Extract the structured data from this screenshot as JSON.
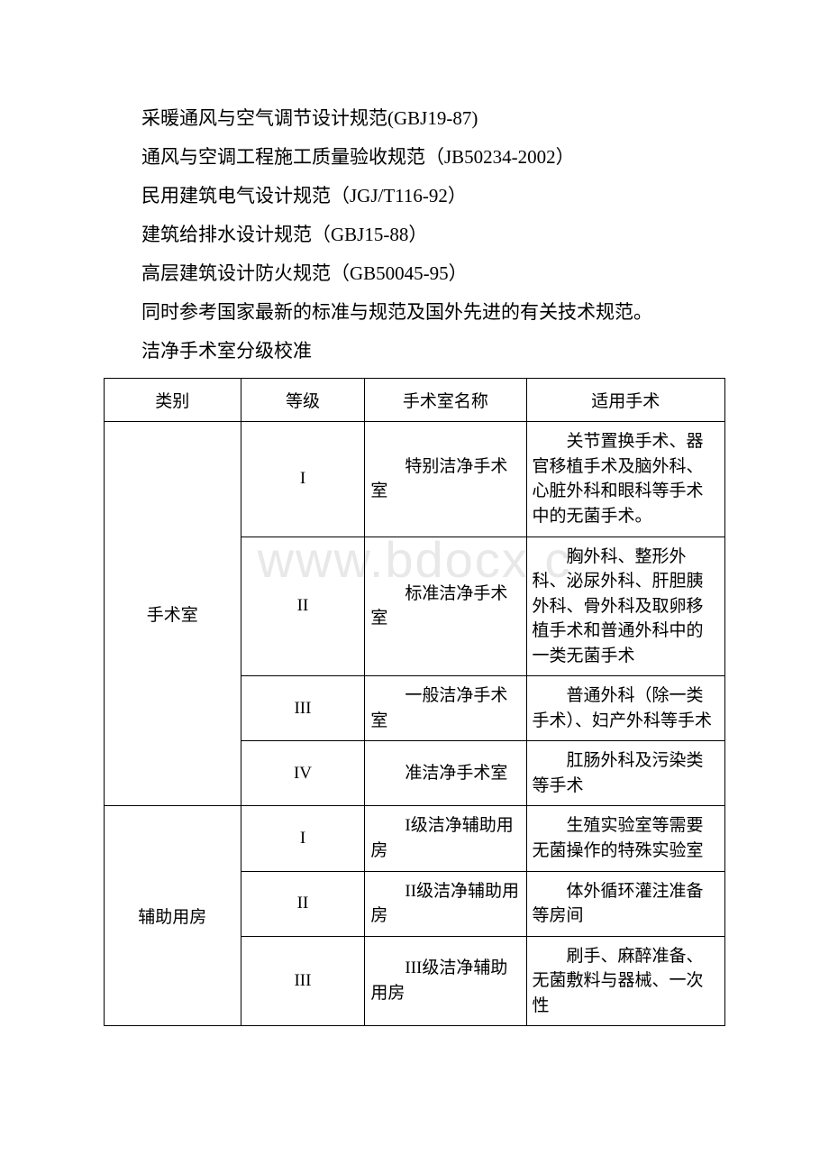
{
  "watermark": "www.bdocx.c",
  "lines": [
    "采暖通风与空气调节设计规范(GBJ19-87)",
    "通风与空调工程施工质量验收规范（JB50234-2002）",
    "民用建筑电气设计规范（JGJ/T116-92）",
    "建筑给排水设计规范（GBJ15-88）",
    "高层建筑设计防火规范（GB50045-95）",
    "同时参考国家最新的标准与规范及国外先进的有关技术规范。",
    "洁净手术室分级校准"
  ],
  "table": {
    "headers": [
      "类别",
      "等级",
      "手术室名称",
      "适用手术"
    ],
    "rows": [
      {
        "category": "手术室",
        "category_rowspan": 4,
        "level": "I",
        "name": "特别洁净手术室",
        "usage": "关节置换手术、器官移植手术及脑外科、心脏外科和眼科等手术中的无菌手术。"
      },
      {
        "level": "II",
        "name": "标准洁净手术室",
        "usage": "胸外科、整形外科、泌尿外科、肝胆胰外科、骨外科及取卵移植手术和普通外科中的一类无菌手术"
      },
      {
        "level": "III",
        "name": "一般洁净手术室",
        "usage": "普通外科（除一类手术）、妇产外科等手术"
      },
      {
        "level": "IV",
        "name": "准洁净手术室",
        "usage": "肛肠外科及污染类等手术"
      },
      {
        "category": "辅助用房",
        "category_rowspan": 3,
        "level": "I",
        "name": "I级洁净辅助用房",
        "usage": "生殖实验室等需要无菌操作的特殊实验室"
      },
      {
        "level": "II",
        "name": "II级洁净辅助用房",
        "usage": "体外循环灌注准备等房间"
      },
      {
        "level": "III",
        "name": "III级洁净辅助用房",
        "usage": "刷手、麻醉准备、无菌敷料与器械、一次性"
      }
    ]
  }
}
